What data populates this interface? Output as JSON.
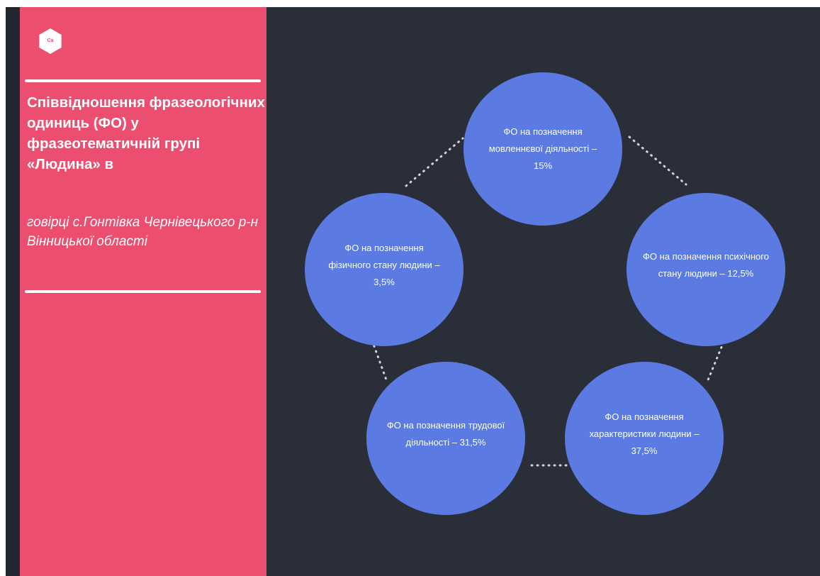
{
  "sidebar": {
    "logo_text": "Ca",
    "title": "Співвідношення фразеологічних одиниць (ФО) у фразеотематичній групі «Людина» в",
    "subtitle": "говірці с.Гонтівка Чернівецького р-н Вінницької області"
  },
  "diagram": {
    "nodes": [
      {
        "id": "speech",
        "label": "ФО на позначення мовленнєвої діяльності – 15%"
      },
      {
        "id": "psychic",
        "label": "ФО на позначення психічного стану людини – 12,5%"
      },
      {
        "id": "characteristics",
        "label": "ФО на позначення характеристики людини – 37,5%"
      },
      {
        "id": "labor",
        "label": "ФО на позначення трудової діяльності – 31,5%"
      },
      {
        "id": "physical",
        "label": "ФО на позначення фізичного стану людини – 3,5%"
      }
    ],
    "node_color": "#5b7be3",
    "connector_color": "#cfd3dc"
  },
  "colors": {
    "sidebar_bg": "#ec4e70",
    "slide_bg": "#2a2e39"
  }
}
